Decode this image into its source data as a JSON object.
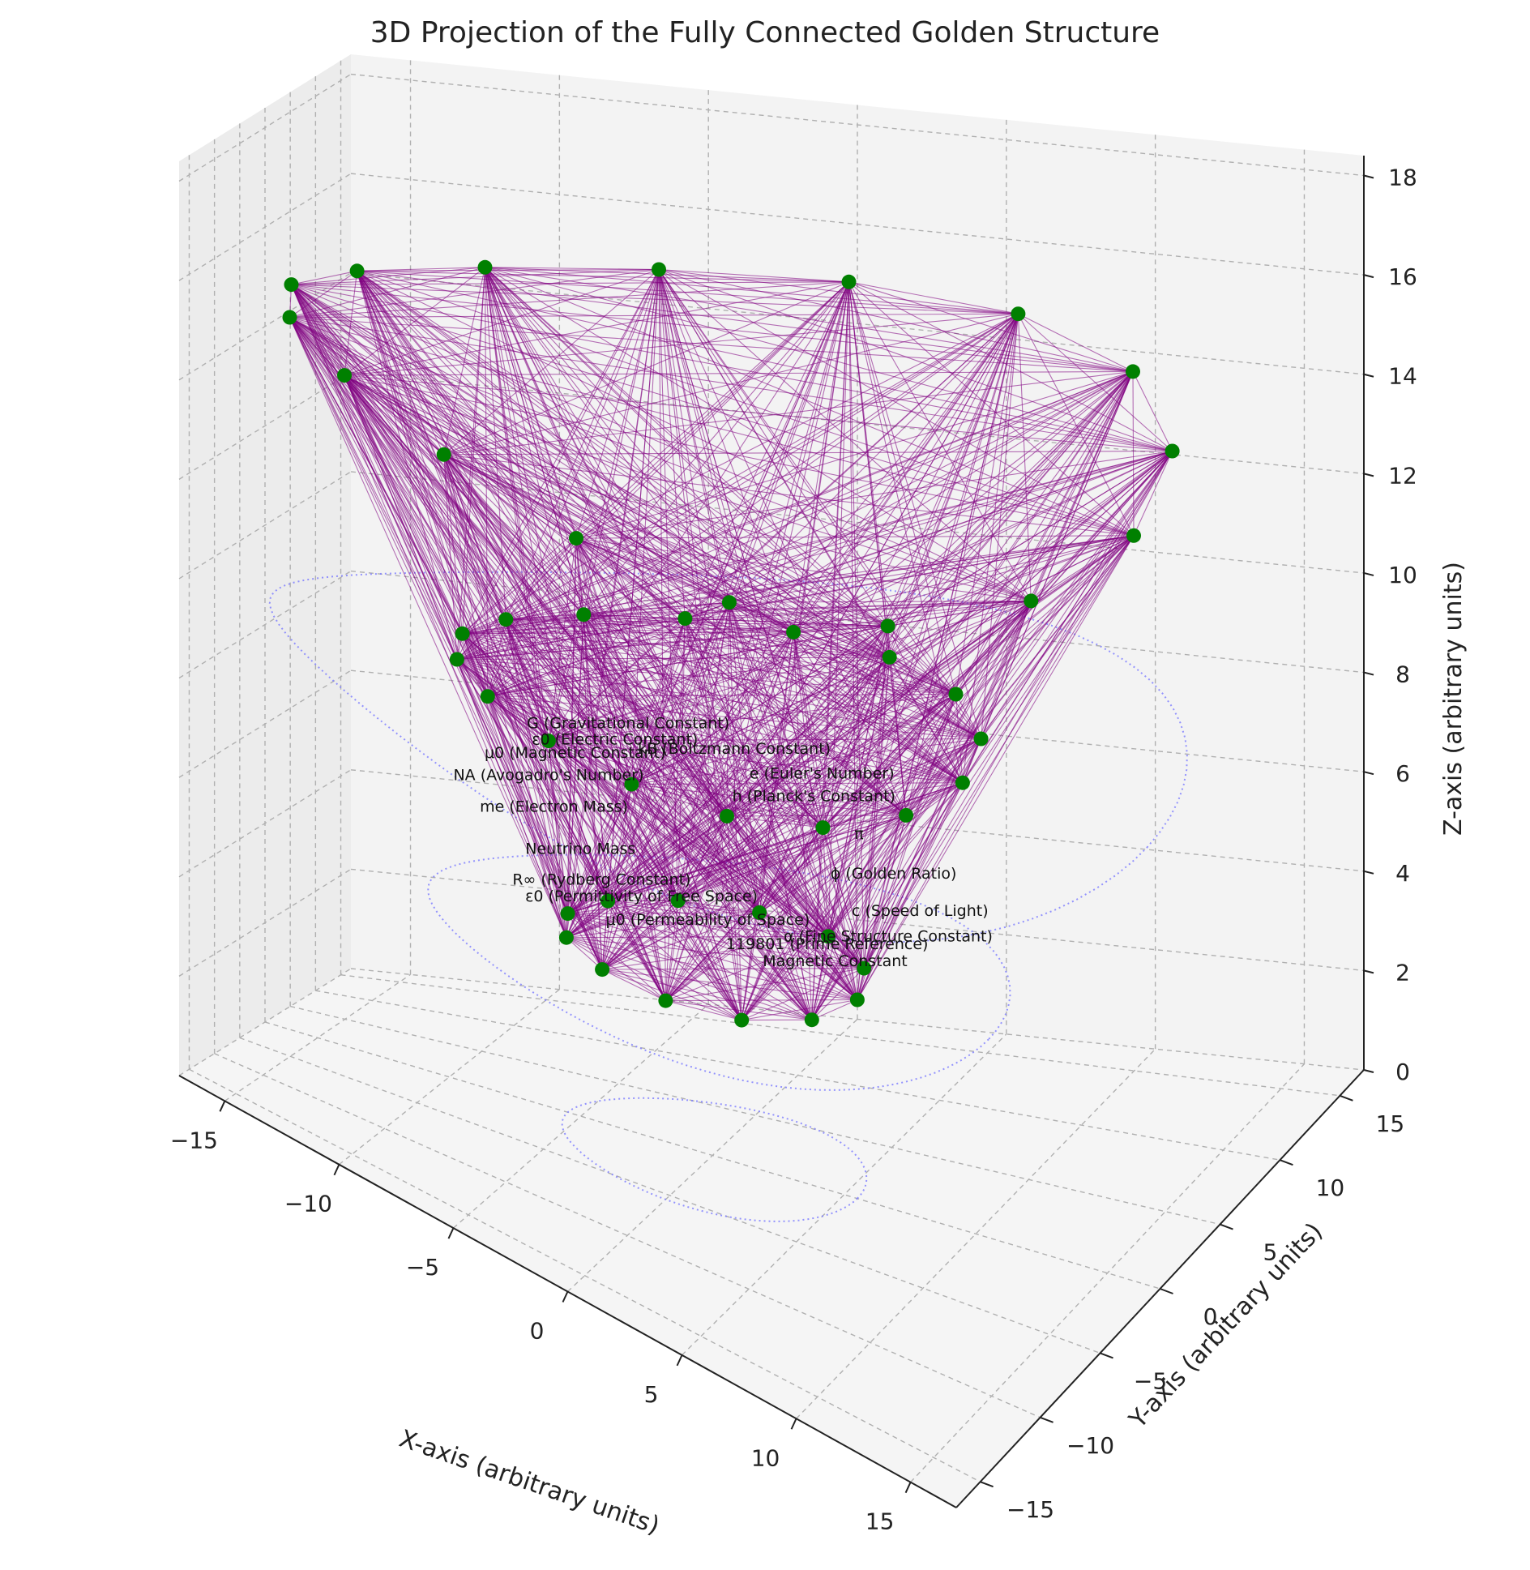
{
  "chart_data": {
    "type": "scatter",
    "title": "3D Projection of the Fully Connected Golden Structure",
    "xlabel": "X-axis (arbitrary units)",
    "ylabel": "Y-axis (arbitrary units)",
    "zlabel": "Z-axis (arbitrary units)",
    "xlim": [
      -17,
      17
    ],
    "ylim": [
      -17,
      17
    ],
    "zlim": [
      0,
      18.4
    ],
    "x_ticks": [
      -15,
      -10,
      -5,
      0,
      5,
      10,
      15
    ],
    "x_tick_labels": [
      "−15",
      "−10",
      "−5",
      "0",
      "5",
      "10",
      "15"
    ],
    "y_ticks": [
      -15,
      -10,
      -5,
      0,
      5,
      10,
      15
    ],
    "y_tick_labels": [
      "−15",
      "−10",
      "−5",
      "0",
      "5",
      "10",
      "15"
    ],
    "z_ticks": [
      0,
      2,
      4,
      6,
      8,
      10,
      12,
      14,
      16,
      18
    ],
    "z_tick_labels": [
      "0",
      "2",
      "4",
      "6",
      "8",
      "10",
      "12",
      "14",
      "16",
      "18"
    ],
    "grid": true,
    "point_color": "#008000",
    "edge_color": "#800080",
    "guide_circle_color": "#7b7bff",
    "pane_color": "#f2f2f2",
    "rings": [
      {
        "radius": 5.5,
        "z": 4.0,
        "count": 12
      },
      {
        "radius": 9.5,
        "z": 9.0,
        "count": 16
      },
      {
        "radius": 16.0,
        "z": 15.0,
        "count": 16
      }
    ],
    "guide_circles": [
      {
        "radius": 5.5,
        "z": 0
      },
      {
        "radius": 10.5,
        "z": 4.0
      },
      {
        "radius": 16.5,
        "z": 8.8
      }
    ],
    "annotations": [
      {
        "text": "$k_B$ (Boltzmann Constant)",
        "x": 0.5,
        "y": 1.0,
        "z": 8.0
      },
      {
        "text": "$e$ (Euler's Number)",
        "x": 3.8,
        "y": 1.0,
        "z": 8.0
      },
      {
        "text": "$G$ (Gravitational Constant)",
        "x": -3.5,
        "y": 1.0,
        "z": 7.9
      },
      {
        "text": "$\\varepsilon_0$ (Electric Constant)",
        "x": -4.0,
        "y": 1.0,
        "z": 7.5
      },
      {
        "text": "$h$ (Planck's Constant)",
        "x": 3.5,
        "y": 1.0,
        "z": 7.5
      },
      {
        "text": "$\\mu_0$ (Magnetic Constant)",
        "x": -5.5,
        "y": 1.0,
        "z": 7.0
      },
      {
        "text": "$\\pi$",
        "x": 5.2,
        "y": 1.0,
        "z": 7.0
      },
      {
        "text": "$N_A$ (Avogadro's Number)",
        "x": -6.5,
        "y": 1.0,
        "z": 6.4
      },
      {
        "text": "$\\phi$ (Golden Ratio)",
        "x": 6.5,
        "y": 1.0,
        "z": 6.4
      },
      {
        "text": "$m_e$ (Electron Mass)",
        "x": -6.3,
        "y": 1.0,
        "z": 5.8
      },
      {
        "text": "$c$ (Speed of Light)",
        "x": 7.5,
        "y": 1.0,
        "z": 5.8
      },
      {
        "text": "Neutrino Mass",
        "x": -5.3,
        "y": 1.0,
        "z": 5.1
      },
      {
        "text": "$\\alpha$ (Fine Structure Constant)",
        "x": 6.3,
        "y": 1.0,
        "z": 5.1
      },
      {
        "text": "$R_\\infty$ (Rydberg Constant)",
        "x": -4.5,
        "y": 1.0,
        "z": 4.6
      },
      {
        "text": "$\\epsilon_0$ (Permittivity of Free Space)",
        "x": -3.0,
        "y": 1.0,
        "z": 4.5
      },
      {
        "text": "$\\mu_0$ (Permeability of Space)",
        "x": -0.5,
        "y": 1.0,
        "z": 4.4
      },
      {
        "text": "119801 (Prime Reference)",
        "x": 4.0,
        "y": 1.0,
        "z": 4.6
      },
      {
        "text": "Magnetic Constant",
        "x": 4.3,
        "y": 1.0,
        "z": 4.3
      }
    ]
  }
}
